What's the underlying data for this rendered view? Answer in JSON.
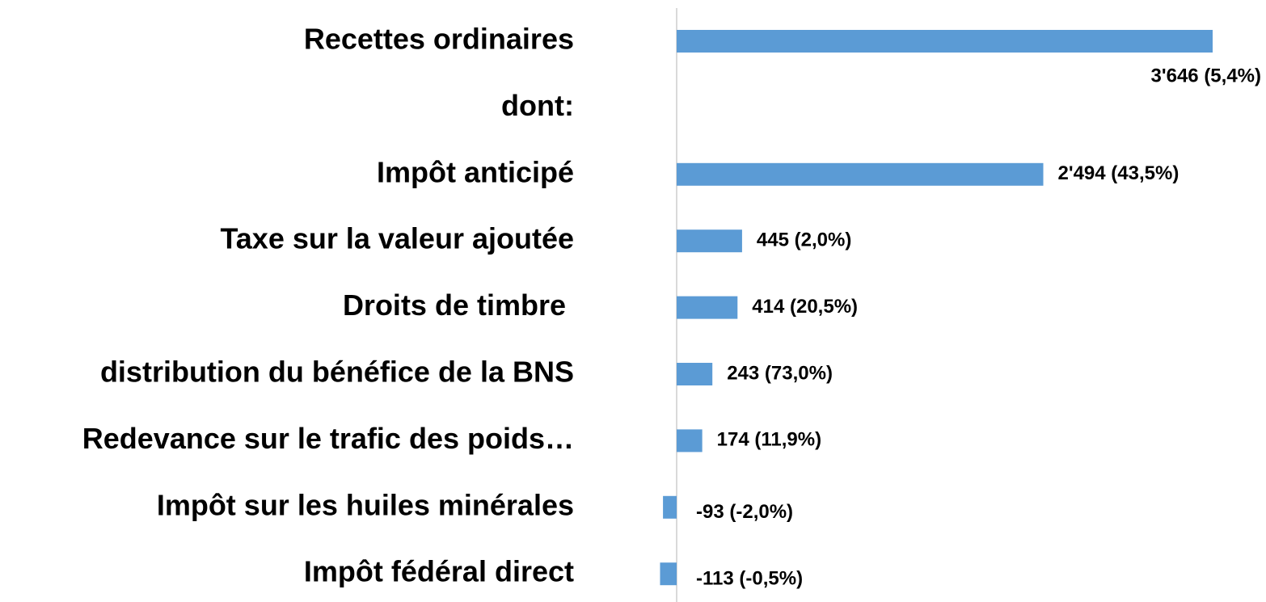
{
  "chart_data": {
    "type": "barh",
    "categories": [
      "Recettes ordinaires",
      "dont:",
      "Impôt anticipé",
      "Taxe sur la valeur ajoutée",
      "Droits de timbre ",
      "distribution du bénéfice de la BNS",
      "Redevance sur le trafic des poids…",
      "Impôt sur les huiles minérales",
      "Impôt fédéral direct"
    ],
    "values": [
      3646,
      null,
      2494,
      445,
      414,
      243,
      174,
      -93,
      -113
    ],
    "value_labels": [
      "3'646 (5,4%)",
      null,
      "2'494 (43,5%)",
      "445 (2,0%)",
      "414 (20,5%)",
      "243 (73,0%)",
      "174 (11,9%)",
      "-93 (-2,0%)",
      "-113 (-0,5%)"
    ],
    "color": "#5b9bd5"
  }
}
